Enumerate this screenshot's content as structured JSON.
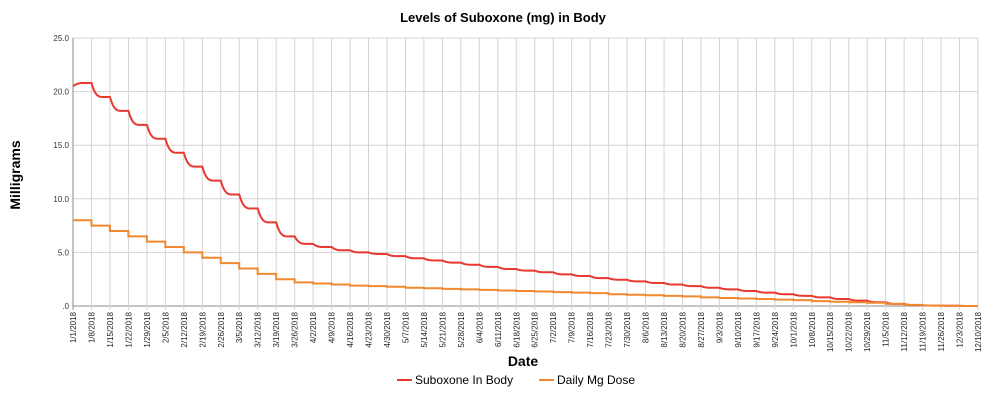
{
  "chart_data": {
    "type": "line",
    "title": "Levels of Suboxone (mg) in Body",
    "xlabel": "Date",
    "ylabel": "Milligrams",
    "ylim": [
      0,
      25
    ],
    "yticks": [
      ".0",
      "5.0",
      "10.0",
      "15.0",
      "20.0",
      "25.0"
    ],
    "grid": true,
    "legend_position": "bottom",
    "categories": [
      "1/1/2018",
      "1/8/2018",
      "1/15/2018",
      "1/22/2018",
      "1/29/2018",
      "2/5/2018",
      "2/12/2018",
      "2/19/2018",
      "2/26/2018",
      "3/5/2018",
      "3/12/2018",
      "3/19/2018",
      "3/26/2018",
      "4/2/2018",
      "4/9/2018",
      "4/16/2018",
      "4/23/2018",
      "4/30/2018",
      "5/7/2018",
      "5/14/2018",
      "5/21/2018",
      "5/28/2018",
      "6/4/2018",
      "6/11/2018",
      "6/18/2018",
      "6/25/2018",
      "7/2/2018",
      "7/9/2018",
      "7/16/2018",
      "7/23/2018",
      "7/30/2018",
      "8/6/2018",
      "8/13/2018",
      "8/20/2018",
      "8/27/2018",
      "9/3/2018",
      "9/10/2018",
      "9/17/2018",
      "9/24/2018",
      "10/1/2018",
      "10/8/2018",
      "10/15/2018",
      "10/22/2018",
      "10/29/2018",
      "11/5/2018",
      "11/12/2018",
      "11/19/2018",
      "11/26/2018",
      "12/3/2018",
      "12/10/2018"
    ],
    "series": [
      {
        "name": "Suboxone In Body",
        "color": "#e8382f",
        "values": [
          20.5,
          20.8,
          19.5,
          18.2,
          16.9,
          15.6,
          14.3,
          13.0,
          11.7,
          10.4,
          9.1,
          7.8,
          6.5,
          5.8,
          5.5,
          5.2,
          5.0,
          4.85,
          4.65,
          4.45,
          4.25,
          4.05,
          3.85,
          3.65,
          3.45,
          3.3,
          3.15,
          2.95,
          2.8,
          2.6,
          2.45,
          2.3,
          2.15,
          2.0,
          1.85,
          1.7,
          1.55,
          1.4,
          1.25,
          1.1,
          0.95,
          0.8,
          0.65,
          0.5,
          0.35,
          0.2,
          0.08,
          0.04,
          0.02,
          0.0
        ]
      },
      {
        "name": "Daily Mg Dose",
        "color": "#f0892f",
        "values": [
          8.0,
          7.5,
          7.0,
          6.5,
          6.0,
          5.5,
          5.0,
          4.5,
          4.0,
          3.5,
          3.0,
          2.5,
          2.2,
          2.1,
          2.0,
          1.9,
          1.85,
          1.8,
          1.7,
          1.65,
          1.6,
          1.55,
          1.5,
          1.45,
          1.4,
          1.35,
          1.3,
          1.25,
          1.2,
          1.1,
          1.05,
          1.0,
          0.95,
          0.9,
          0.8,
          0.75,
          0.7,
          0.65,
          0.6,
          0.55,
          0.45,
          0.4,
          0.35,
          0.3,
          0.2,
          0.1,
          0.05,
          0.02,
          0.0,
          0.0
        ]
      }
    ]
  }
}
